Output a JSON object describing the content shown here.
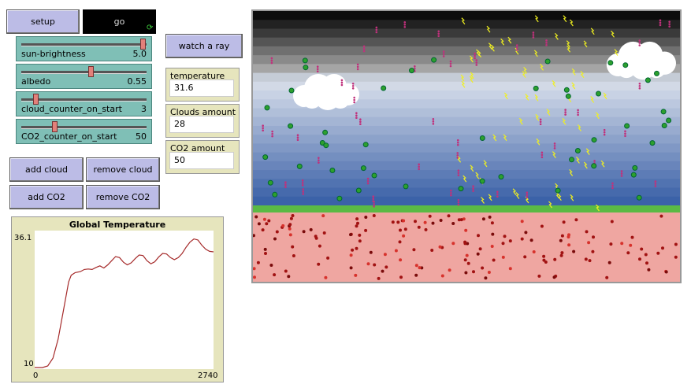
{
  "buttons": {
    "setup": "setup",
    "go": "go",
    "watch_a_ray": "watch a ray",
    "add_cloud": "add cloud",
    "remove_cloud": "remove cloud",
    "add_co2": "add CO2",
    "remove_co2": "remove CO2"
  },
  "sliders": [
    {
      "label": "sun-brightness",
      "value": "5.0",
      "fraction": 0.98
    },
    {
      "label": "albedo",
      "value": "0.55",
      "fraction": 0.55
    },
    {
      "label": "cloud_counter_on_start",
      "value": "3",
      "fraction": 0.1
    },
    {
      "label": "CO2_counter_on_start",
      "value": "50",
      "fraction": 0.25
    }
  ],
  "monitors": [
    {
      "label": "temperature",
      "value": "31.6"
    },
    {
      "label": "Clouds amount",
      "value": "28"
    },
    {
      "label": "CO2 amount",
      "value": "50"
    }
  ],
  "plot": {
    "title": "Global Temperature",
    "ymax_label": "36.1",
    "ymin_label": "10",
    "xmin_label": "0",
    "xmax_label": "2740"
  },
  "chart_data": {
    "type": "line",
    "title": "Global Temperature",
    "xlim": [
      0,
      2740
    ],
    "ylim": [
      10,
      36.1
    ],
    "series": [
      {
        "color": "#a52a2a",
        "x": [
          0,
          120,
          200,
          280,
          360,
          440,
          520,
          560,
          620,
          700,
          760,
          820,
          880,
          940,
          1000,
          1060,
          1120,
          1180,
          1240,
          1300,
          1360,
          1420,
          1480,
          1540,
          1600,
          1660,
          1720,
          1780,
          1840,
          1900,
          1960,
          2020,
          2080,
          2140,
          2200,
          2260,
          2320,
          2380,
          2440,
          2500,
          2560,
          2620,
          2680,
          2740
        ],
        "y": [
          10.0,
          10.0,
          10.3,
          11.8,
          15.5,
          21.0,
          26.5,
          27.8,
          28.3,
          28.5,
          28.9,
          29.0,
          28.9,
          29.3,
          29.6,
          29.2,
          29.8,
          30.6,
          31.4,
          31.2,
          30.3,
          29.8,
          30.2,
          31.0,
          31.7,
          31.6,
          30.6,
          30.0,
          30.4,
          31.3,
          32.0,
          31.9,
          31.2,
          30.8,
          31.2,
          32.0,
          33.2,
          34.2,
          34.8,
          34.6,
          33.6,
          32.8,
          32.4,
          32.3
        ]
      }
    ]
  },
  "world": {
    "sky_color": "#4a77b8",
    "earth_color": "#efa6a1",
    "grass_color": "#5aba44"
  }
}
